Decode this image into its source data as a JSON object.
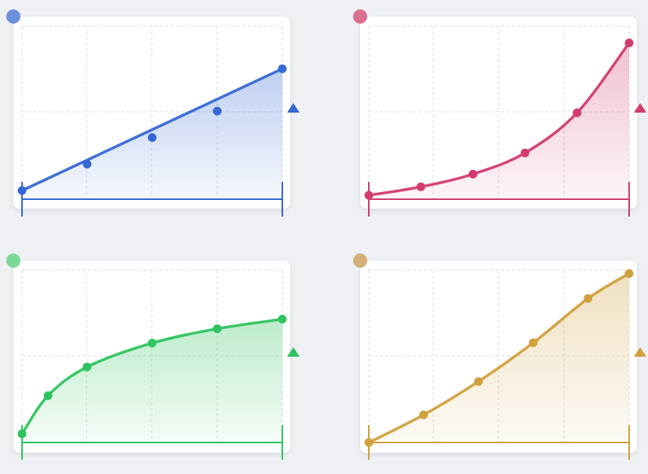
{
  "chart_data": [
    {
      "type": "line",
      "curve": "linear",
      "colors": {
        "accent": "#3568d4",
        "corner_dot": "#6d8fdc"
      },
      "marker": "triangle",
      "grid": true,
      "fill": true,
      "x": [
        0,
        1,
        2,
        3,
        4
      ],
      "series": [
        {
          "values": [
            0,
            1,
            2,
            3,
            4.6
          ]
        }
      ]
    },
    {
      "type": "line",
      "curve": "exponential",
      "colors": {
        "accent": "#d23c6c",
        "corner_dot": "#d96f8f"
      },
      "marker": "triangle",
      "grid": true,
      "fill": true,
      "x": [
        0,
        1,
        2,
        3,
        4,
        5
      ],
      "series": [
        {
          "values": [
            0,
            0.4,
            1,
            2,
            3.9,
            7.2
          ]
        }
      ]
    },
    {
      "type": "line",
      "curve": "logarithmic",
      "colors": {
        "accent": "#2fc35f",
        "corner_dot": "#7ad996"
      },
      "marker": "triangle",
      "grid": true,
      "fill": true,
      "x": [
        0,
        0.4,
        1,
        2,
        3,
        4
      ],
      "series": [
        {
          "values": [
            0,
            1.6,
            2.8,
            3.8,
            4.4,
            4.8
          ]
        }
      ]
    },
    {
      "type": "line",
      "curve": "quadratic",
      "colors": {
        "accent": "#d0a03c",
        "corner_dot": "#d6b07a"
      },
      "marker": "triangle",
      "grid": true,
      "fill": true,
      "x": [
        0,
        1,
        2,
        3,
        4,
        4.75
      ],
      "series": [
        {
          "values": [
            0,
            1,
            2.2,
            3.6,
            5.2,
            6.1
          ]
        }
      ]
    }
  ]
}
